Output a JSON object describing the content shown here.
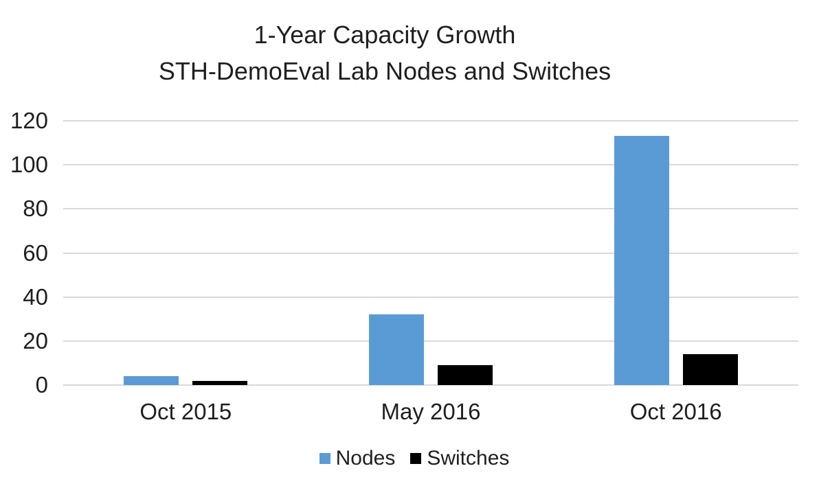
{
  "chart_data": {
    "type": "bar",
    "title": "1-Year Capacity Growth",
    "subtitle": "STH-DemoEval Lab Nodes and Switches",
    "categories": [
      "Oct 2015",
      "May 2016",
      "Oct 2016"
    ],
    "series": [
      {
        "name": "Nodes",
        "color": "#5B9BD5",
        "values": [
          4,
          32,
          113
        ]
      },
      {
        "name": "Switches",
        "color": "#000000",
        "values": [
          2,
          9,
          14
        ]
      }
    ],
    "xlabel": "",
    "ylabel": "",
    "ylim": [
      0,
      120
    ],
    "yticks": [
      0,
      20,
      40,
      60,
      80,
      100,
      120
    ],
    "grid": true,
    "gridline_color": "#D9D9D9",
    "legend_position": "bottom",
    "background_color": "#FFFFFF",
    "text_color": "#1F1F1F"
  }
}
